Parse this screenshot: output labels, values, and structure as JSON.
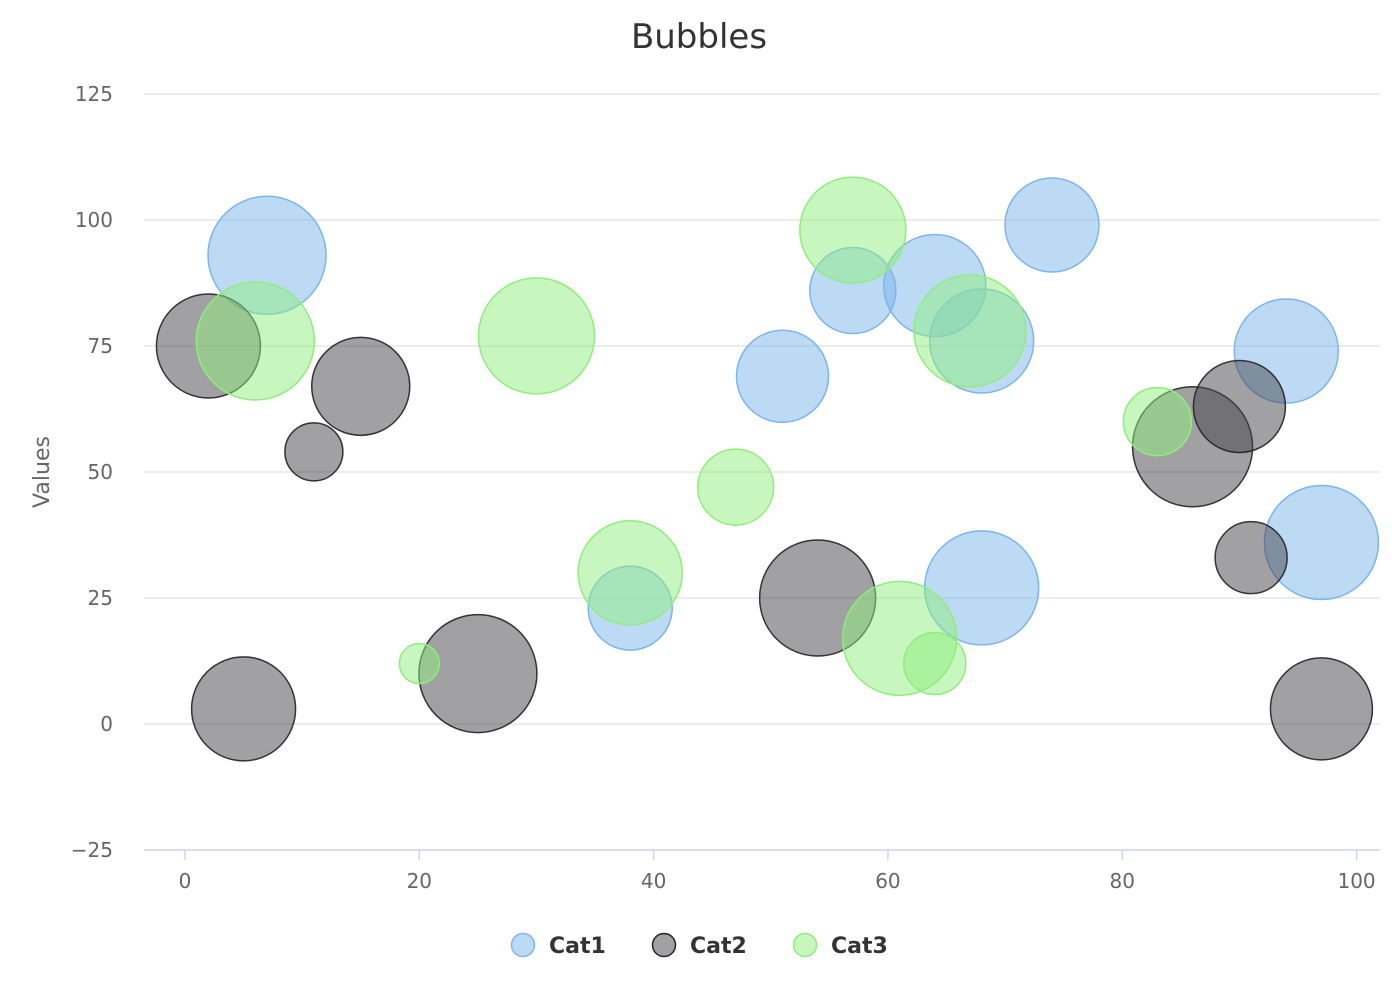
{
  "chart_data": {
    "type": "bubble",
    "title": "Bubbles",
    "xlabel": "",
    "ylabel": "Values",
    "xlim": [
      -3.5,
      102
    ],
    "ylim": [
      -25,
      125
    ],
    "xticks": [
      0,
      20,
      40,
      60,
      80,
      100
    ],
    "yticks": [
      -25,
      0,
      25,
      50,
      75,
      100,
      125
    ],
    "xtick_labels": [
      "0",
      "20",
      "40",
      "60",
      "80",
      "100"
    ],
    "ytick_labels": [
      "−25",
      "0",
      "25",
      "50",
      "75",
      "100",
      "125"
    ],
    "grid": "horizontal",
    "legend": "bottom-center",
    "series": [
      {
        "name": "Cat1",
        "fill": "#7cb5ec",
        "stroke": "#7cb5ec",
        "points": [
          {
            "x": 7,
            "y": 93,
            "z": 59
          },
          {
            "x": 38,
            "y": 23,
            "z": 42
          },
          {
            "x": 51,
            "y": 69,
            "z": 46
          },
          {
            "x": 57,
            "y": 86,
            "z": 43
          },
          {
            "x": 64,
            "y": 87,
            "z": 51
          },
          {
            "x": 68,
            "y": 76,
            "z": 52
          },
          {
            "x": 68,
            "y": 27,
            "z": 57
          },
          {
            "x": 74,
            "y": 99,
            "z": 47
          },
          {
            "x": 94,
            "y": 74,
            "z": 52
          },
          {
            "x": 97,
            "y": 36,
            "z": 57
          }
        ]
      },
      {
        "name": "Cat2",
        "fill": "#434348",
        "stroke": "#434348",
        "points": [
          {
            "x": 2,
            "y": 75,
            "z": 52
          },
          {
            "x": 5,
            "y": 3,
            "z": 52
          },
          {
            "x": 11,
            "y": 54,
            "z": 29
          },
          {
            "x": 15,
            "y": 67,
            "z": 49
          },
          {
            "x": 25,
            "y": 10,
            "z": 59
          },
          {
            "x": 54,
            "y": 25,
            "z": 58
          },
          {
            "x": 86,
            "y": 55,
            "z": 60
          },
          {
            "x": 90,
            "y": 63,
            "z": 46
          },
          {
            "x": 91,
            "y": 33,
            "z": 36
          },
          {
            "x": 97,
            "y": 3,
            "z": 51
          }
        ]
      },
      {
        "name": "Cat3",
        "fill": "#90ed7d",
        "stroke": "#90ed7d",
        "points": [
          {
            "x": 6,
            "y": 76,
            "z": 59
          },
          {
            "x": 20,
            "y": 12,
            "z": 20
          },
          {
            "x": 30,
            "y": 77,
            "z": 58
          },
          {
            "x": 38,
            "y": 30,
            "z": 52
          },
          {
            "x": 47,
            "y": 47,
            "z": 38
          },
          {
            "x": 57,
            "y": 98,
            "z": 53
          },
          {
            "x": 61,
            "y": 17,
            "z": 57
          },
          {
            "x": 64,
            "y": 12,
            "z": 31
          },
          {
            "x": 67,
            "y": 78,
            "z": 56
          },
          {
            "x": 83,
            "y": 60,
            "z": 34
          }
        ]
      }
    ]
  }
}
